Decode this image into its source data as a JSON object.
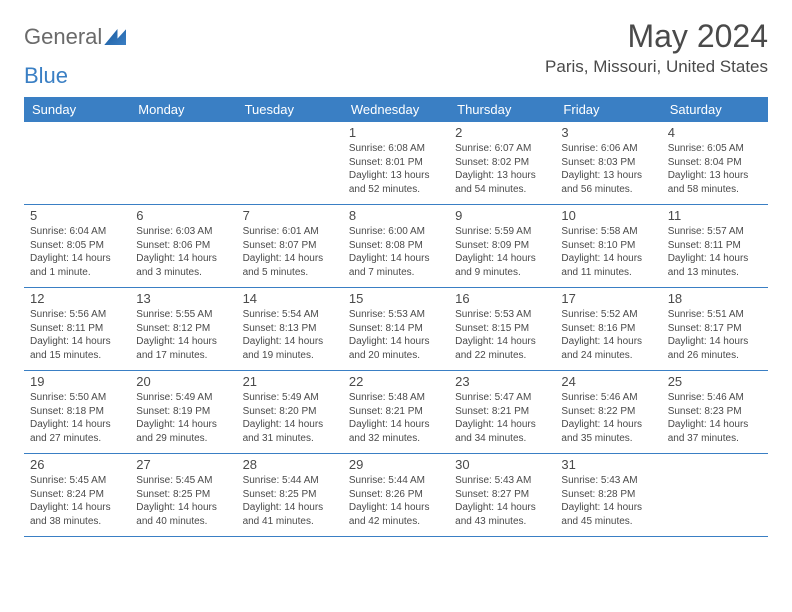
{
  "brand": {
    "word1": "General",
    "word2": "Blue"
  },
  "title": "May 2024",
  "location": "Paris, Missouri, United States",
  "colors": {
    "header_bg": "#3a7fc4",
    "header_fg": "#ffffff",
    "text": "#4a4a4a",
    "line": "#3a7fc4",
    "page_bg": "#ffffff"
  },
  "day_labels": [
    "Sunday",
    "Monday",
    "Tuesday",
    "Wednesday",
    "Thursday",
    "Friday",
    "Saturday"
  ],
  "weeks": [
    [
      {
        "blank": true
      },
      {
        "blank": true
      },
      {
        "blank": true
      },
      {
        "day": "1",
        "sunrise": "Sunrise: 6:08 AM",
        "sunset": "Sunset: 8:01 PM",
        "daylight1": "Daylight: 13 hours",
        "daylight2": "and 52 minutes."
      },
      {
        "day": "2",
        "sunrise": "Sunrise: 6:07 AM",
        "sunset": "Sunset: 8:02 PM",
        "daylight1": "Daylight: 13 hours",
        "daylight2": "and 54 minutes."
      },
      {
        "day": "3",
        "sunrise": "Sunrise: 6:06 AM",
        "sunset": "Sunset: 8:03 PM",
        "daylight1": "Daylight: 13 hours",
        "daylight2": "and 56 minutes."
      },
      {
        "day": "4",
        "sunrise": "Sunrise: 6:05 AM",
        "sunset": "Sunset: 8:04 PM",
        "daylight1": "Daylight: 13 hours",
        "daylight2": "and 58 minutes."
      }
    ],
    [
      {
        "day": "5",
        "sunrise": "Sunrise: 6:04 AM",
        "sunset": "Sunset: 8:05 PM",
        "daylight1": "Daylight: 14 hours",
        "daylight2": "and 1 minute."
      },
      {
        "day": "6",
        "sunrise": "Sunrise: 6:03 AM",
        "sunset": "Sunset: 8:06 PM",
        "daylight1": "Daylight: 14 hours",
        "daylight2": "and 3 minutes."
      },
      {
        "day": "7",
        "sunrise": "Sunrise: 6:01 AM",
        "sunset": "Sunset: 8:07 PM",
        "daylight1": "Daylight: 14 hours",
        "daylight2": "and 5 minutes."
      },
      {
        "day": "8",
        "sunrise": "Sunrise: 6:00 AM",
        "sunset": "Sunset: 8:08 PM",
        "daylight1": "Daylight: 14 hours",
        "daylight2": "and 7 minutes."
      },
      {
        "day": "9",
        "sunrise": "Sunrise: 5:59 AM",
        "sunset": "Sunset: 8:09 PM",
        "daylight1": "Daylight: 14 hours",
        "daylight2": "and 9 minutes."
      },
      {
        "day": "10",
        "sunrise": "Sunrise: 5:58 AM",
        "sunset": "Sunset: 8:10 PM",
        "daylight1": "Daylight: 14 hours",
        "daylight2": "and 11 minutes."
      },
      {
        "day": "11",
        "sunrise": "Sunrise: 5:57 AM",
        "sunset": "Sunset: 8:11 PM",
        "daylight1": "Daylight: 14 hours",
        "daylight2": "and 13 minutes."
      }
    ],
    [
      {
        "day": "12",
        "sunrise": "Sunrise: 5:56 AM",
        "sunset": "Sunset: 8:11 PM",
        "daylight1": "Daylight: 14 hours",
        "daylight2": "and 15 minutes."
      },
      {
        "day": "13",
        "sunrise": "Sunrise: 5:55 AM",
        "sunset": "Sunset: 8:12 PM",
        "daylight1": "Daylight: 14 hours",
        "daylight2": "and 17 minutes."
      },
      {
        "day": "14",
        "sunrise": "Sunrise: 5:54 AM",
        "sunset": "Sunset: 8:13 PM",
        "daylight1": "Daylight: 14 hours",
        "daylight2": "and 19 minutes."
      },
      {
        "day": "15",
        "sunrise": "Sunrise: 5:53 AM",
        "sunset": "Sunset: 8:14 PM",
        "daylight1": "Daylight: 14 hours",
        "daylight2": "and 20 minutes."
      },
      {
        "day": "16",
        "sunrise": "Sunrise: 5:53 AM",
        "sunset": "Sunset: 8:15 PM",
        "daylight1": "Daylight: 14 hours",
        "daylight2": "and 22 minutes."
      },
      {
        "day": "17",
        "sunrise": "Sunrise: 5:52 AM",
        "sunset": "Sunset: 8:16 PM",
        "daylight1": "Daylight: 14 hours",
        "daylight2": "and 24 minutes."
      },
      {
        "day": "18",
        "sunrise": "Sunrise: 5:51 AM",
        "sunset": "Sunset: 8:17 PM",
        "daylight1": "Daylight: 14 hours",
        "daylight2": "and 26 minutes."
      }
    ],
    [
      {
        "day": "19",
        "sunrise": "Sunrise: 5:50 AM",
        "sunset": "Sunset: 8:18 PM",
        "daylight1": "Daylight: 14 hours",
        "daylight2": "and 27 minutes."
      },
      {
        "day": "20",
        "sunrise": "Sunrise: 5:49 AM",
        "sunset": "Sunset: 8:19 PM",
        "daylight1": "Daylight: 14 hours",
        "daylight2": "and 29 minutes."
      },
      {
        "day": "21",
        "sunrise": "Sunrise: 5:49 AM",
        "sunset": "Sunset: 8:20 PM",
        "daylight1": "Daylight: 14 hours",
        "daylight2": "and 31 minutes."
      },
      {
        "day": "22",
        "sunrise": "Sunrise: 5:48 AM",
        "sunset": "Sunset: 8:21 PM",
        "daylight1": "Daylight: 14 hours",
        "daylight2": "and 32 minutes."
      },
      {
        "day": "23",
        "sunrise": "Sunrise: 5:47 AM",
        "sunset": "Sunset: 8:21 PM",
        "daylight1": "Daylight: 14 hours",
        "daylight2": "and 34 minutes."
      },
      {
        "day": "24",
        "sunrise": "Sunrise: 5:46 AM",
        "sunset": "Sunset: 8:22 PM",
        "daylight1": "Daylight: 14 hours",
        "daylight2": "and 35 minutes."
      },
      {
        "day": "25",
        "sunrise": "Sunrise: 5:46 AM",
        "sunset": "Sunset: 8:23 PM",
        "daylight1": "Daylight: 14 hours",
        "daylight2": "and 37 minutes."
      }
    ],
    [
      {
        "day": "26",
        "sunrise": "Sunrise: 5:45 AM",
        "sunset": "Sunset: 8:24 PM",
        "daylight1": "Daylight: 14 hours",
        "daylight2": "and 38 minutes."
      },
      {
        "day": "27",
        "sunrise": "Sunrise: 5:45 AM",
        "sunset": "Sunset: 8:25 PM",
        "daylight1": "Daylight: 14 hours",
        "daylight2": "and 40 minutes."
      },
      {
        "day": "28",
        "sunrise": "Sunrise: 5:44 AM",
        "sunset": "Sunset: 8:25 PM",
        "daylight1": "Daylight: 14 hours",
        "daylight2": "and 41 minutes."
      },
      {
        "day": "29",
        "sunrise": "Sunrise: 5:44 AM",
        "sunset": "Sunset: 8:26 PM",
        "daylight1": "Daylight: 14 hours",
        "daylight2": "and 42 minutes."
      },
      {
        "day": "30",
        "sunrise": "Sunrise: 5:43 AM",
        "sunset": "Sunset: 8:27 PM",
        "daylight1": "Daylight: 14 hours",
        "daylight2": "and 43 minutes."
      },
      {
        "day": "31",
        "sunrise": "Sunrise: 5:43 AM",
        "sunset": "Sunset: 8:28 PM",
        "daylight1": "Daylight: 14 hours",
        "daylight2": "and 45 minutes."
      },
      {
        "blank": true
      }
    ]
  ]
}
